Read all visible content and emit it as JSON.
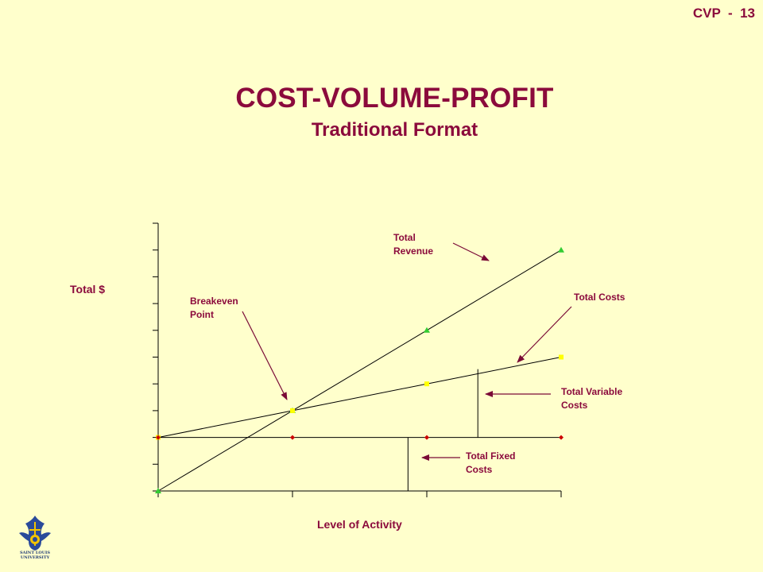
{
  "slide": {
    "number": "CVP  -  13"
  },
  "header": {
    "title": "COST-VOLUME-PROFIT",
    "subtitle": "Traditional Format"
  },
  "annotations": {
    "total_revenue": [
      "Total",
      "Revenue"
    ],
    "total_costs": "Total Costs",
    "breakeven": [
      "Breakeven",
      "Point"
    ],
    "total_variable": [
      "Total Variable",
      "Costs"
    ],
    "total_fixed": [
      "Total Fixed",
      "Costs"
    ]
  },
  "logo": {
    "name": "saint-louis-university-logo",
    "text": [
      "SAINT LOUIS",
      "UNIVERSITY"
    ]
  },
  "colors": {
    "accent": "#8b0a3c",
    "background": "#ffffcc",
    "revenue_marker": "#33cc33",
    "cost_marker": "#ffff00",
    "fixed_marker": "#cc0000"
  },
  "chart_data": {
    "type": "line",
    "xlabel": "Level of Activity",
    "ylabel": "Total $",
    "x": [
      0,
      1,
      2,
      3
    ],
    "xlim": [
      0,
      3
    ],
    "ylim": [
      0,
      10
    ],
    "grid": false,
    "series": [
      {
        "name": "Total Revenue",
        "marker": "triangle",
        "color": "#33cc33",
        "values": [
          0,
          3,
          6,
          9
        ]
      },
      {
        "name": "Total Costs",
        "marker": "square",
        "color": "#ffff00",
        "values": [
          2,
          3,
          4,
          5
        ]
      },
      {
        "name": "Total Fixed Costs",
        "marker": "diamond",
        "color": "#cc0000",
        "values": [
          2,
          2,
          2,
          2
        ]
      }
    ],
    "reference_lines": [
      {
        "name": "Total Variable Costs",
        "x": 2.38,
        "y_from": 2,
        "y_to": 4.55
      },
      {
        "name": "Total Fixed Costs",
        "x": 1.86,
        "y_from": 0,
        "y_to": 2
      }
    ],
    "annotations": [
      "Total Revenue",
      "Total Costs",
      "Breakeven Point",
      "Total Variable Costs",
      "Total Fixed Costs"
    ]
  }
}
